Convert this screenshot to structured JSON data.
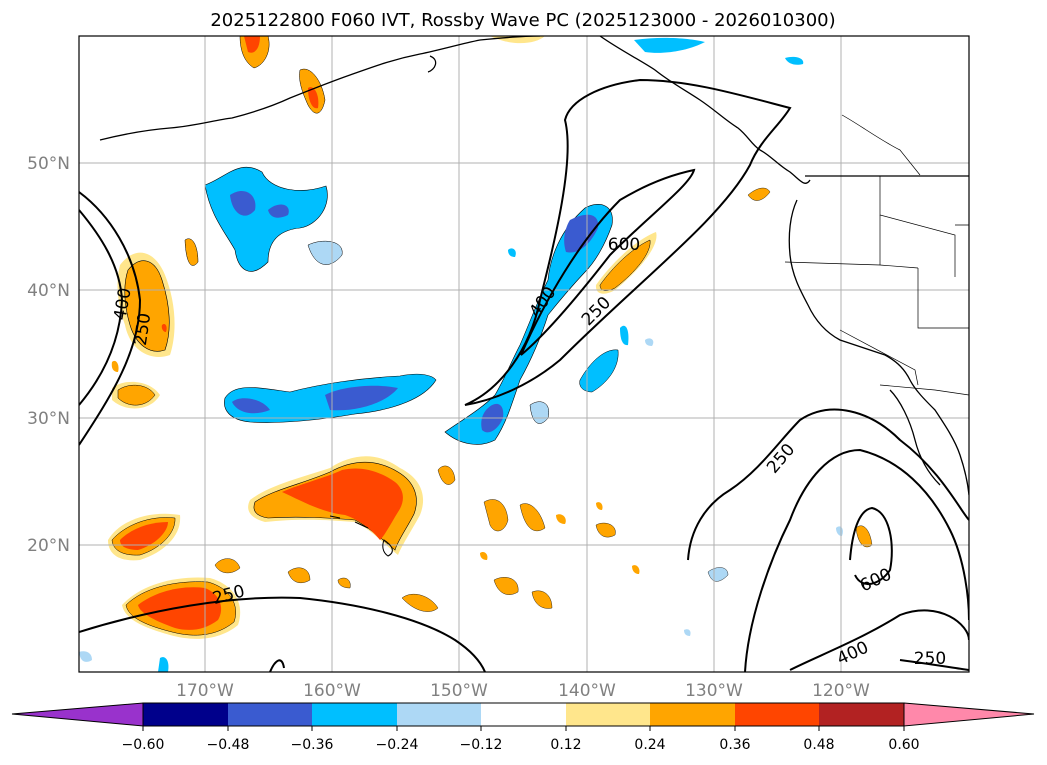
{
  "title": "2025122800 F060 IVT, Rossby Wave PC (2025123000 - 2026010300)",
  "lat_labels": [
    "50°N",
    "40°N",
    "30°N",
    "20°N"
  ],
  "lon_labels": [
    "170°W",
    "160°W",
    "150°W",
    "140°W",
    "130°W",
    "120°W"
  ],
  "contour_labels": [
    "400",
    "250",
    "600",
    "400",
    "250",
    "250",
    "250",
    "600",
    "400",
    "250"
  ],
  "colorbar": {
    "tick_labels": [
      "−0.60",
      "−0.48",
      "−0.36",
      "−0.24",
      "−0.12",
      "0.12",
      "0.24",
      "0.36",
      "0.48",
      "0.60"
    ],
    "colors": [
      "#9932cc",
      "#00008b",
      "#3a5bd0",
      "#00bfff",
      "#add8f5",
      "#ffffff",
      "#ffe68c",
      "#ffa500",
      "#ff4500",
      "#b22222",
      "#ff88aa"
    ]
  },
  "colors": {
    "neg_strong": "#3a5bd0",
    "neg_mid": "#00bfff",
    "neg_weak": "#add8f5",
    "pos_weak": "#ffe68c",
    "pos_mid": "#ffa500",
    "pos_strong": "#ff4500",
    "grid": "#b0b0b0",
    "coast": "#000000"
  }
}
